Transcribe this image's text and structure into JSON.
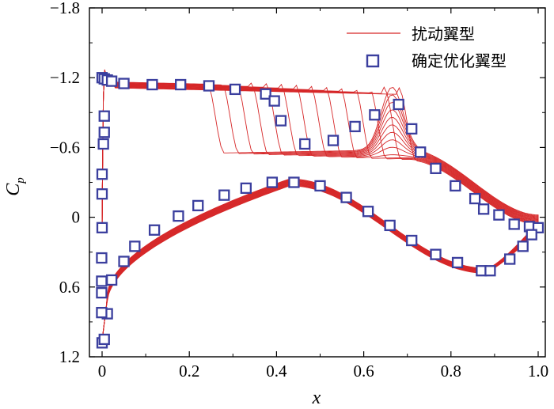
{
  "chart_data": {
    "type": "line+scatter",
    "xlabel": "x",
    "ylabel_main": "C",
    "ylabel_sub": "p",
    "xlim": [
      0.0,
      1.0
    ],
    "ylim": [
      -1.8,
      1.2
    ],
    "y_inverted": true,
    "x_ticks": [
      0.0,
      0.2,
      0.4,
      0.6,
      0.8,
      1.0
    ],
    "x_tick_labels": [
      "0",
      "0.2",
      "0.4",
      "0.6",
      "0.8",
      "1.0"
    ],
    "y_ticks": [
      -1.8,
      -1.2,
      -0.6,
      0,
      0.6,
      1.2
    ],
    "y_tick_labels": [
      "−1.8",
      "−1.2",
      "−0.6",
      "0",
      "0.6",
      "1.2"
    ],
    "legend_position": "top-right",
    "colors": {
      "perturbed": "#d62728",
      "marker_edge": "#3b3f9e",
      "marker_fill": "#ffffff"
    },
    "legend": {
      "perturbed": "扰动翼型",
      "optimized": "确定优化翼型"
    },
    "perturbed_series": {
      "name": "扰动翼型",
      "count": 14,
      "shock_x_range": [
        0.24,
        0.68
      ],
      "plateau_cp": -1.14,
      "post_shock_cp": -0.55
    },
    "optimized_upper": {
      "x": [
        0.0,
        0.005,
        0.012,
        0.022,
        0.05,
        0.115,
        0.18,
        0.245,
        0.305,
        0.375,
        0.395,
        0.41,
        0.465,
        0.53,
        0.58,
        0.625,
        0.68,
        0.71,
        0.73,
        0.765,
        0.81,
        0.855,
        0.875,
        0.91,
        0.945,
        0.98,
        1.0
      ],
      "y": [
        -1.2,
        -1.19,
        -1.18,
        -1.17,
        -1.15,
        -1.14,
        -1.14,
        -1.13,
        -1.1,
        -1.06,
        -1.0,
        -0.83,
        -0.63,
        -0.66,
        -0.78,
        -0.88,
        -0.97,
        -0.76,
        -0.56,
        -0.42,
        -0.27,
        -0.16,
        -0.07,
        -0.02,
        0.06,
        0.08,
        0.09
      ]
    },
    "optimized_lower": {
      "x": [
        0.0,
        0.005,
        0.012,
        0.022,
        0.05,
        0.075,
        0.12,
        0.175,
        0.22,
        0.28,
        0.33,
        0.39,
        0.44,
        0.5,
        0.56,
        0.61,
        0.66,
        0.71,
        0.765,
        0.815,
        0.87,
        0.89,
        0.935,
        0.965,
        0.985
      ],
      "y": [
        1.08,
        1.05,
        0.83,
        0.54,
        0.38,
        0.25,
        0.11,
        -0.01,
        -0.1,
        -0.19,
        -0.25,
        -0.3,
        -0.3,
        -0.27,
        -0.17,
        -0.05,
        0.07,
        0.2,
        0.32,
        0.39,
        0.46,
        0.46,
        0.36,
        0.25,
        0.15
      ]
    },
    "optimized_leading_edge": {
      "x": [
        -0.001,
        -0.001,
        -0.001,
        -0.001,
        0.0,
        0.0,
        0.0,
        0.003,
        0.005,
        0.005
      ],
      "y": [
        0.82,
        0.65,
        0.55,
        0.35,
        0.09,
        -0.2,
        -0.37,
        -0.63,
        -0.73,
        -0.87
      ]
    }
  }
}
